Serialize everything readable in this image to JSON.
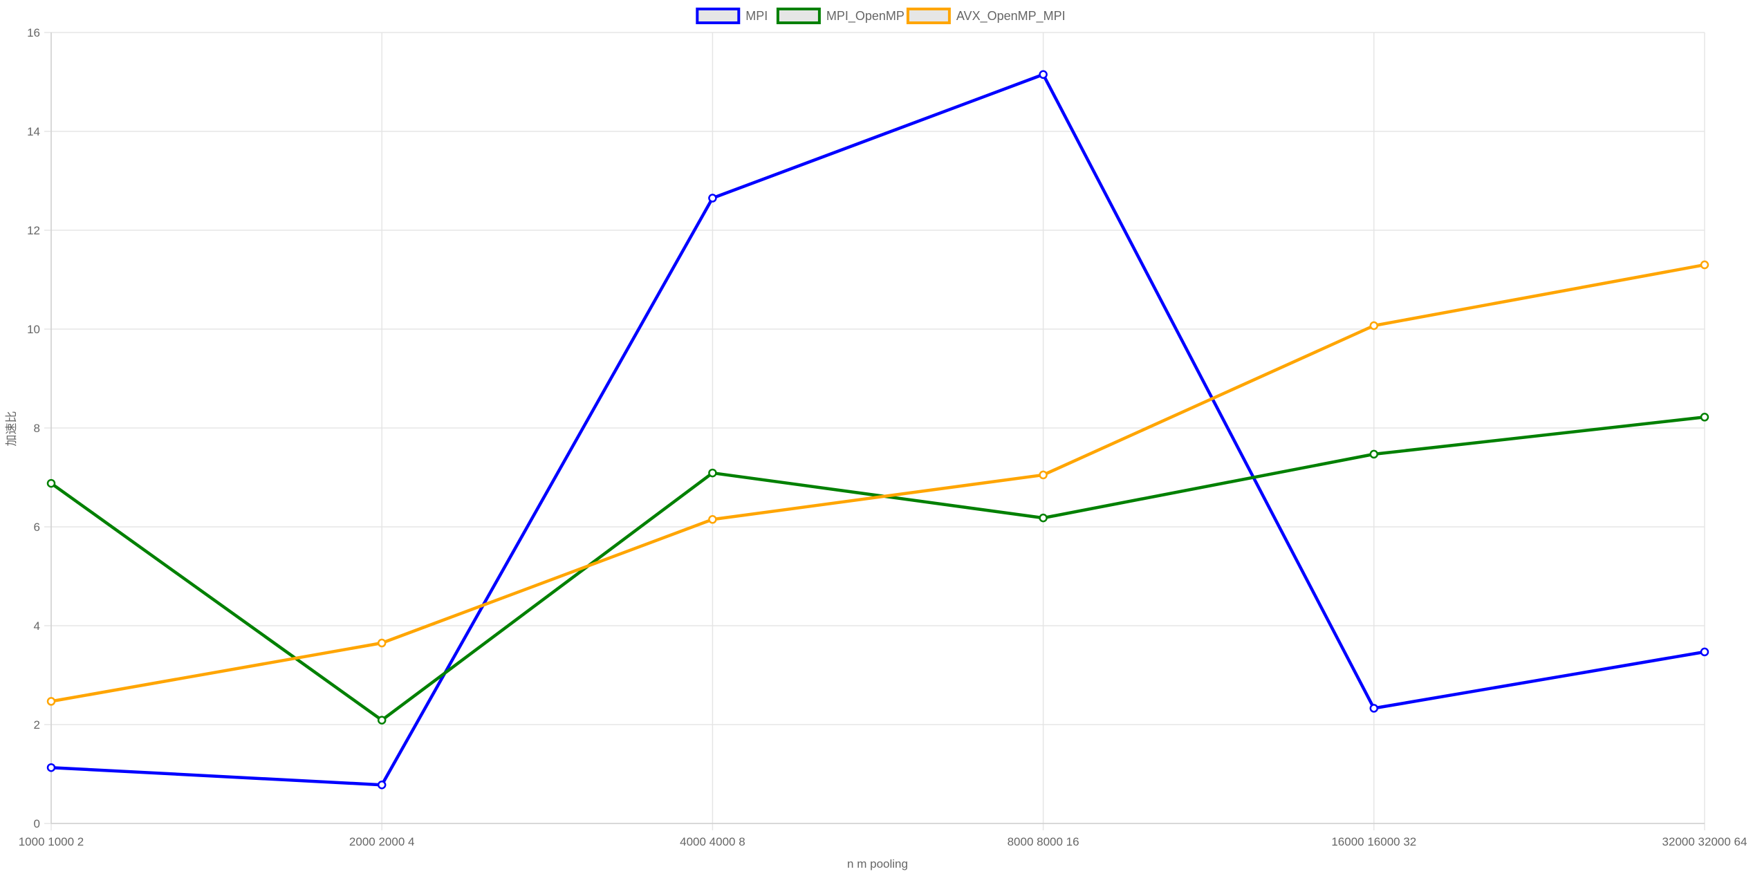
{
  "chart_data": {
    "type": "line",
    "xlabel": "n m pooling",
    "ylabel": "加速比",
    "categories": [
      "1000 1000 2",
      "2000 2000 4",
      "4000 4000 8",
      "8000 8000 16",
      "16000 16000 32",
      "32000 32000 64"
    ],
    "ylim": [
      0,
      16
    ],
    "yticks": [
      0,
      2,
      4,
      6,
      8,
      10,
      12,
      14,
      16
    ],
    "grid": true,
    "legend_position": "top-center",
    "series": [
      {
        "name": "MPI",
        "color": "#0000ff",
        "values": [
          1.13,
          0.78,
          12.65,
          15.15,
          2.33,
          3.47
        ]
      },
      {
        "name": "MPI_OpenMP",
        "color": "#008000",
        "values": [
          6.88,
          2.09,
          7.09,
          6.18,
          7.47,
          8.22
        ]
      },
      {
        "name": "AVX_OpenMP_MPI",
        "color": "#ffa500",
        "values": [
          2.47,
          3.65,
          6.15,
          7.05,
          10.07,
          11.3
        ]
      }
    ]
  }
}
